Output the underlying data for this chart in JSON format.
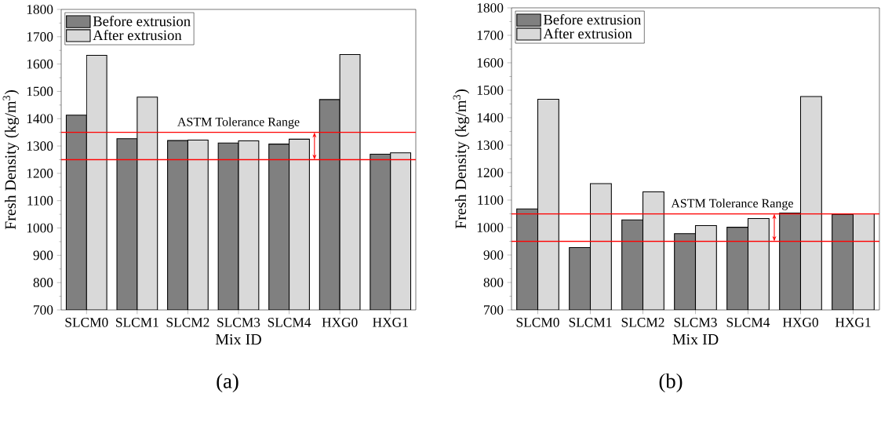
{
  "chart_data": [
    {
      "type": "bar",
      "categories": [
        "SLCM0",
        "SLCM1",
        "SLCM2",
        "SLCM3",
        "SLCM4",
        "HXG0",
        "HXG1"
      ],
      "xlabel": "Mix ID",
      "ylabel": "Fresh Density (kg/m$^{3}$)",
      "ylim": [
        700,
        1800
      ],
      "yticks": [
        700,
        800,
        900,
        1000,
        1100,
        1200,
        1300,
        1400,
        1500,
        1600,
        1700,
        1800
      ],
      "legend": "top left",
      "series": [
        {
          "name": "Before extrusion",
          "color": "#808080",
          "values": [
            1413,
            1327,
            1320,
            1311,
            1307,
            1470,
            1270
          ]
        },
        {
          "name": "After extrusion",
          "color": "#d9d9d9",
          "values": [
            1632,
            1479,
            1322,
            1319,
            1325,
            1635,
            1275
          ]
        }
      ],
      "ref_lines": [
        {
          "axis": "y",
          "value": 1350,
          "color": "#ff0000"
        },
        {
          "axis": "y",
          "value": 1250,
          "color": "#ff0000"
        }
      ],
      "annotations": [
        {
          "text": "ASTM Tolerance Range",
          "y": 1350
        },
        "(a)"
      ]
    },
    {
      "type": "bar",
      "categories": [
        "SLCM0",
        "SLCM1",
        "SLCM2",
        "SLCM3",
        "SLCM4",
        "HXG0",
        "HXG1"
      ],
      "xlabel": "Mix ID",
      "ylabel": "Fresh Density (kg/m$^{3}$)",
      "ylim": [
        700,
        1800
      ],
      "yticks": [
        700,
        800,
        900,
        1000,
        1100,
        1200,
        1300,
        1400,
        1500,
        1600,
        1700,
        1800
      ],
      "legend": "top left",
      "series": [
        {
          "name": "Before extrusion",
          "color": "#808080",
          "values": [
            1068,
            927,
            1028,
            978,
            1001,
            1053,
            1048
          ]
        },
        {
          "name": "After extrusion",
          "color": "#d9d9d9",
          "values": [
            1467,
            1160,
            1130,
            1007,
            1033,
            1477,
            1050
          ]
        }
      ],
      "ref_lines": [
        {
          "axis": "y",
          "value": 1050,
          "color": "#ff0000"
        },
        {
          "axis": "y",
          "value": 950,
          "color": "#ff0000"
        }
      ],
      "annotations": [
        {
          "text": "ASTM Tolerance Range",
          "y": 1050
        },
        "(b)"
      ]
    }
  ]
}
